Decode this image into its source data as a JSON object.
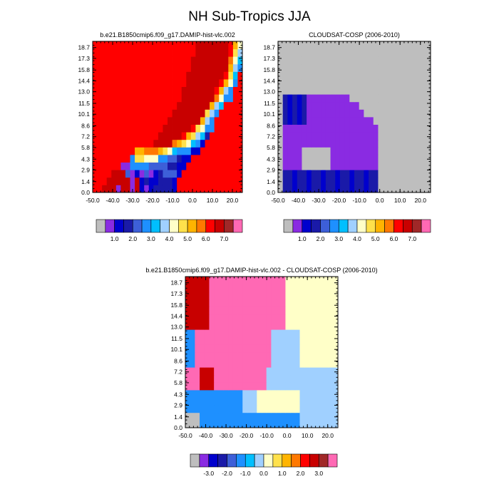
{
  "figure": {
    "title": "NH Sub-Tropics JJA"
  },
  "colors": {
    "missing": "#bebebe",
    "axis": "#000000",
    "background": "#ffffff"
  },
  "chart_data": [
    {
      "type": "heatmap",
      "title": "b.e21.B1850cmip6.f09_g17.DAMIP-hist-vlc.002",
      "x_tick_labels": [
        "-50.0",
        "-40.0",
        "-30.0",
        "-20.0",
        "-10.0",
        "0.0",
        "10.0",
        "20.0"
      ],
      "x_range": [
        -50,
        25
      ],
      "y_tick_labels": [
        "0.0",
        "1.4",
        "2.9",
        "4.3",
        "5.8",
        "7.2",
        "8.6",
        "10.1",
        "11.5",
        "13.0",
        "14.4",
        "15.8",
        "17.3",
        "18.7"
      ],
      "y_range": [
        0,
        19.5
      ],
      "grid": false,
      "colorbar": {
        "labels": [
          "1.0",
          "2.0",
          "3.0",
          "4.0",
          "5.0",
          "6.0",
          "7.0"
        ],
        "colors": [
          "#bebebe",
          "#8a2be2",
          "#0000cd",
          "#1a1aa8",
          "#3d5fd8",
          "#1e90ff",
          "#00bfff",
          "#a0d0ff",
          "#ffffc8",
          "#ffe14b",
          "#ffb400",
          "#ff7800",
          "#ff0000",
          "#c80000",
          "#a02828",
          "#ff69b4"
        ]
      },
      "field": [
        "mmnnnbnnbncbcddddcmmmmmmmmmmmmmm",
        "mmmnnnnnbncdccdddcmmmmmmmmmmmmmm",
        "mmmmnnnebcbebcdeeecmmmmmmmmmmmmm",
        "mmmmmmbbffffeeeeddccmmmmmmmmmmmm",
        "mmmmmmmmfjjiiiffeedccmmmmmmmmmmm",
        "mmmmmmmmmkklllkjigfffccmmmmmmmmm",
        "mmmmmmmmmmmmmnnnnlkjigfcmmmmmmmm",
        "mmmmmmmmmmmmmmnnnnnmkjhgdmmmmmmm",
        "mmmmmmmmmmmmmmmnnnnnnmjiffmmmmmm",
        "mmmmmmmmmmmmmmmmnnnnnnnkhfmmmmmm",
        "mmmmmmmmmmmmmmmmmnnnnnnnjhfmmmmm",
        "mmmmmmmmmmmmmmmmmmnnnnnnnkhgmmmm",
        "mmmmmmmmmmmmmmmmmmmnnnnnnnliffmm",
        "mmmmmmmmmmmmmmmmmmmnnnnnnnmkhfmm",
        "mmmmmmmmmmmmmmmmmmmmnnnnnnnmkifm",
        "mmmmmmmmmmmmmmmmmmmmnnnnnnnnmjgm",
        "mmmmmmmmmmmmmmmmmmmmmnnnnnnnnkhf",
        "mmmmmmmmmmmmmmmmmmmmmnnnnnnnnlig",
        "mmmmmmmmmmmmmmmmmmmmmmnnnnnnnmjh",
        "mmmmmmmmmmmmmmmmmmmmmmnnnnnnnmki"
      ]
    },
    {
      "type": "heatmap",
      "title": "CLOUDSAT-COSP (2006-2010)",
      "x_tick_labels": [
        "-50.0",
        "-40.0",
        "-30.0",
        "-20.0",
        "-10.0",
        "0.0",
        "10.0",
        "20.0"
      ],
      "x_range": [
        -50,
        25
      ],
      "y_tick_labels": [
        "0.0",
        "1.4",
        "2.9",
        "4.3",
        "5.8",
        "7.2",
        "8.6",
        "10.1",
        "11.5",
        "13.0",
        "14.4",
        "15.8",
        "17.3",
        "18.7"
      ],
      "y_range": [
        0,
        19.5
      ],
      "grid": false,
      "colorbar": {
        "labels": [
          "1.0",
          "2.0",
          "3.0",
          "4.0",
          "5.0",
          "6.0",
          "7.0"
        ],
        "colors": [
          "#bebebe",
          "#8a2be2",
          "#0000cd",
          "#1a1aa8",
          "#3d5fd8",
          "#1e90ff",
          "#00bfff",
          "#a0d0ff",
          "#ffffc8",
          "#ffe14b",
          "#ffb400",
          "#ff7800",
          "#ff0000",
          "#c80000",
          "#a02828",
          "#ff69b4"
        ]
      },
      "field": [
        "................................",
        "................................",
        "................................",
        "................................",
        "................................",
        "................................",
        "................................",
        "................................",
        "................................",
        "................................",
        "................................",
        "................................",
        "................................",
        "................................",
        "................................",
        "................................",
        "................................",
        "................................",
        "................................",
        "................................"
      ]
    },
    {
      "type": "heatmap",
      "title": "b.e21.B1850cmip6.f09_g17.DAMIP-hist-vlc.002 - CLOUDSAT-COSP (2006-2010)",
      "x_tick_labels": [
        "-50.0",
        "-40.0",
        "-30.0",
        "-20.0",
        "-10.0",
        "0.0",
        "10.0",
        "20.0"
      ],
      "x_range": [
        -50,
        25
      ],
      "y_tick_labels": [
        "0.0",
        "1.4",
        "2.9",
        "4.3",
        "5.8",
        "7.2",
        "8.6",
        "10.1",
        "11.5",
        "13.0",
        "14.4",
        "15.8",
        "17.3",
        "18.7"
      ],
      "y_range": [
        0,
        19.5
      ],
      "grid": false,
      "colorbar": {
        "labels": [
          "-3.0",
          "-2.0",
          "-1.0",
          "0.0",
          "1.0",
          "2.0",
          "3.0"
        ],
        "colors": [
          "#bebebe",
          "#8a2be2",
          "#0000cd",
          "#1a1aa8",
          "#3d5fd8",
          "#1e90ff",
          "#00bfff",
          "#a0d0ff",
          "#ffffc8",
          "#ffe14b",
          "#ffb400",
          "#ff7800",
          "#ff0000",
          "#c80000",
          "#a02828",
          "#ff69b4"
        ]
      },
      "field": [
        "................................",
        "................................",
        "................................",
        "................................",
        "................................",
        "................................",
        "................................",
        "................................",
        "................................",
        "................................",
        "................................",
        "................................",
        "................................",
        "................................",
        "................................",
        "................................",
        "................................",
        "................................",
        "................................",
        "................................"
      ]
    }
  ]
}
